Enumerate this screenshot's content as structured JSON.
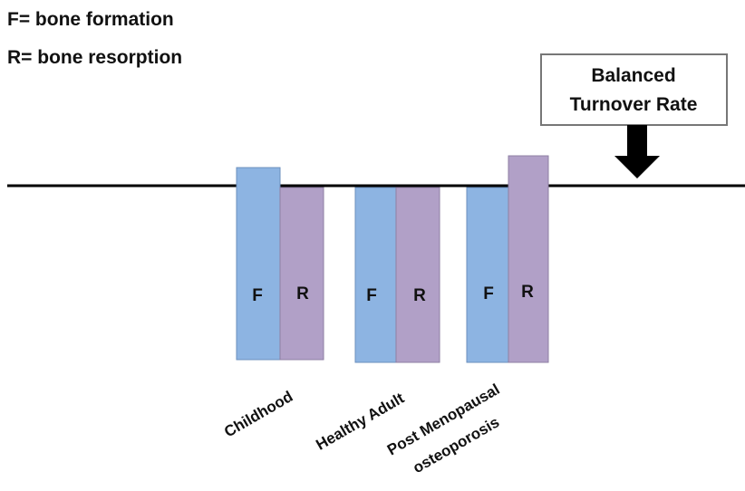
{
  "legend": {
    "lines": [
      "F= bone formation",
      "R= bone resorption"
    ]
  },
  "callout": {
    "lines": [
      "Balanced",
      "Turnover Rate"
    ]
  },
  "groups": [
    {
      "label_lines": [
        "Childhood"
      ],
      "formation": "F",
      "resorption": "R"
    },
    {
      "label_lines": [
        "Healthy Adult"
      ],
      "formation": "F",
      "resorption": "R"
    },
    {
      "label_lines": [
        "Post Menopausal",
        "osteoporosis"
      ],
      "formation": "F",
      "resorption": "R"
    }
  ]
}
